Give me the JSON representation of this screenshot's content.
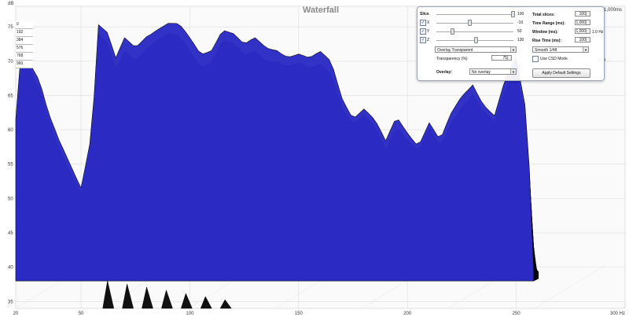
{
  "chart_data": {
    "type": "area",
    "title": "Waterfall",
    "ylabel": "dB",
    "xunit": "300 Hz",
    "xlim": [
      20,
      300
    ],
    "ylim": [
      34,
      78
    ],
    "x_ticks": [
      "20",
      "50",
      "100",
      "150",
      "200",
      "250",
      "300 Hz"
    ],
    "x_tick_values": [
      20,
      50,
      100,
      150,
      200,
      250,
      300
    ],
    "y_ticks": [
      "75",
      "70",
      "65",
      "60",
      "55",
      "50",
      "45",
      "40",
      "35"
    ],
    "y_tick_values": [
      75,
      70,
      65,
      60,
      55,
      50,
      45,
      40,
      35
    ],
    "time_axis_labels": [
      "0",
      "192",
      "384",
      "576",
      "768",
      "960"
    ],
    "time_end_label": "1,000ms",
    "right_time_label": "960",
    "colors": {
      "surface": "#2b2bc4",
      "contour": "#000000",
      "grid": "#dcdcdc"
    },
    "front_slice": {
      "x": [
        20,
        22,
        25,
        28,
        31,
        35,
        40,
        45,
        50,
        55,
        58,
        62,
        66,
        70,
        75,
        80,
        85,
        90,
        95,
        100,
        105,
        110,
        115,
        120,
        125,
        130,
        135,
        140,
        145,
        150,
        155,
        160,
        165,
        170,
        175,
        180,
        185,
        190,
        195,
        200,
        205,
        210,
        215,
        220,
        225,
        230,
        235,
        240,
        245,
        250,
        255,
        258
      ],
      "y": [
        62,
        70,
        72,
        69,
        67,
        62,
        58,
        55,
        52,
        60,
        75.5,
        74,
        70,
        73,
        72,
        74,
        75,
        75.5,
        75,
        73,
        71,
        72,
        75,
        74,
        72,
        73,
        72,
        72,
        71,
        71,
        70,
        71,
        70,
        65,
        62,
        63,
        61,
        58,
        62,
        60,
        58,
        61,
        58,
        62,
        65,
        67,
        64,
        62,
        67,
        70,
        62,
        40
      ]
    },
    "back_slice_level": 39
  },
  "panel": {
    "slice_label": "Slice",
    "slice_value": "100",
    "axis_x_label": "X",
    "axis_x_value": "-10",
    "axis_y_label": "Y",
    "axis_y_value": "50",
    "axis_z_label": "Z",
    "axis_z_value": "130",
    "overlay_mode": "Overlay Transparent",
    "transparency_label": "Transparency (%)",
    "transparency_value": "75",
    "overlay_label": "Overlay:",
    "overlay_value": "No overlay",
    "total_slices_label": "Total slices:",
    "total_slices_value": "100",
    "time_range_label": "Time Range (ms):",
    "time_range_value": "1,000",
    "window_label": "Window (ms):",
    "window_value": "1,000",
    "window_hz": "1.0 Hz",
    "rise_time_label": "Rise Time (ms):",
    "rise_time_value": "100",
    "smoothing_value": "Smooth 1/48",
    "csd_label": "Use CSD Mode",
    "apply_button": "Apply Default Settings"
  }
}
